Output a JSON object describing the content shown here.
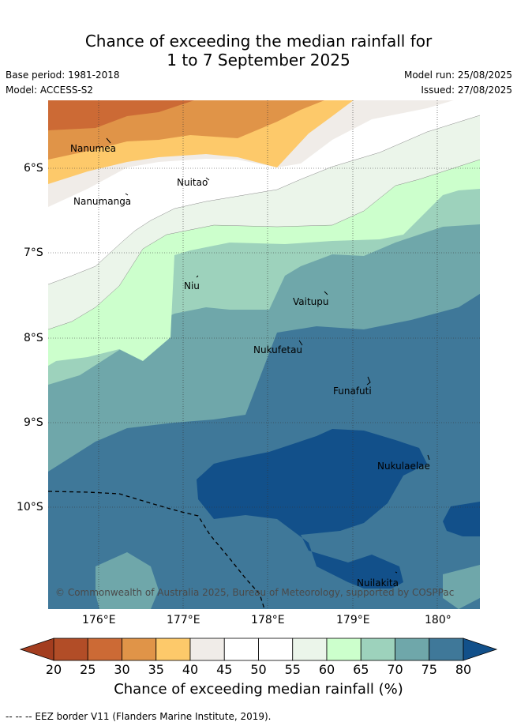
{
  "title_line1": "Chance of exceeding the median rainfall for",
  "title_line2": "1 to 7 September 2025",
  "base_period": "Base period: 1981-2018",
  "model": "Model: ACCESS-S2",
  "model_run": "Model run: 25/08/2025",
  "issued": "Issued: 27/08/2025",
  "lat_labels": [
    "6°S",
    "7°S",
    "8°S",
    "9°S",
    "10°S"
  ],
  "lon_labels": [
    "176°E",
    "177°E",
    "178°E",
    "179°E",
    "180°"
  ],
  "places": {
    "nanumea": "Nanumea",
    "nuitao": "Nuitao",
    "nanumanga": "Nanumanga",
    "niu": "Niu",
    "vaitupu": "Vaitupu",
    "nukufetau": "Nukufetau",
    "funafuti": "Funafuti",
    "nukulaelae": "Nukulaelae",
    "nuilakita": "Nuilakita"
  },
  "copyright": "© Commonwealth of Australia 2025, Bureau of Meteorology, supported by COSPPac",
  "colorbar": {
    "ticks": [
      "20",
      "25",
      "30",
      "35",
      "40",
      "45",
      "50",
      "55",
      "60",
      "65",
      "70",
      "75",
      "80"
    ],
    "colors": [
      "#a33d1f",
      "#b24d27",
      "#cc6a35",
      "#e09448",
      "#fdc96a",
      "#f0ece8",
      "#ffffff",
      "#ffffff",
      "#ebf5ea",
      "#ccffcc",
      "#9dd2bc",
      "#6fa7aa",
      "#3f7899",
      "#12508a"
    ],
    "label": "Chance of exceeding median rainfall (%)"
  },
  "eez_note": "-- -- -- EEZ border V11 (Flanders Marine Institute, 2019)."
}
